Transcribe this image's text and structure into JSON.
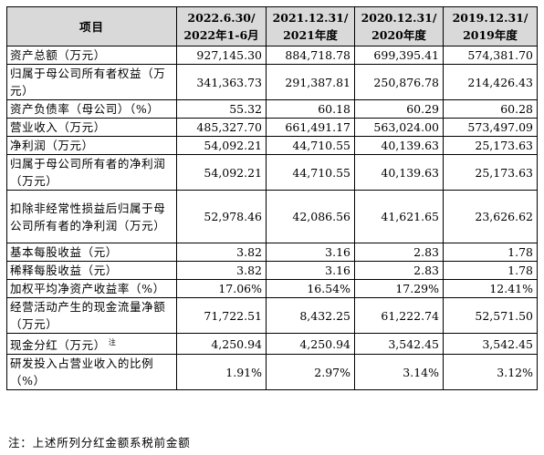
{
  "header": {
    "item": "项目",
    "periods": [
      {
        "line1": "2022.6.30/",
        "line2": "2022年1-6月"
      },
      {
        "line1": "2021.12.31/",
        "line2": "2021年度"
      },
      {
        "line1": "2020.12.31/",
        "line2": "2020年度"
      },
      {
        "line1": "2019.12.31/",
        "line2": "2019年度"
      }
    ]
  },
  "rows": [
    {
      "label": "资产总额（万元）",
      "values": [
        "927,145.30",
        "884,718.78",
        "699,395.41",
        "574,381.70"
      ]
    },
    {
      "label": "归属于母公司所有者权益（万元）",
      "values": [
        "341,363.73",
        "291,387.81",
        "250,876.78",
        "214,426.43"
      ]
    },
    {
      "label": "资产负债率（母公司）（%）",
      "values": [
        "55.32",
        "60.18",
        "60.29",
        "60.28"
      ]
    },
    {
      "label": "营业收入（万元）",
      "values": [
        "485,327.70",
        "661,491.17",
        "563,024.00",
        "573,497.09"
      ]
    },
    {
      "label": "净利润（万元）",
      "values": [
        "54,092.21",
        "44,710.55",
        "40,139.63",
        "25,173.63"
      ]
    },
    {
      "label": "归属于母公司所有者的净利润（万元）",
      "values": [
        "54,092.21",
        "44,710.55",
        "40,139.63",
        "25,173.63"
      ]
    },
    {
      "label": "扣除非经常性损益后归属于母公司所有者的净利润（万元）",
      "values": [
        "52,978.46",
        "42,086.56",
        "41,621.65",
        "23,626.62"
      ]
    },
    {
      "label": "基本每股收益（元）",
      "values": [
        "3.82",
        "3.16",
        "2.83",
        "1.78"
      ]
    },
    {
      "label": "稀释每股收益（元）",
      "values": [
        "3.82",
        "3.16",
        "2.83",
        "1.78"
      ]
    },
    {
      "label": "加权平均净资产收益率（%）",
      "values": [
        "17.06%",
        "16.54%",
        "17.29%",
        "12.41%"
      ]
    },
    {
      "label": "经营活动产生的现金流量净额（万元）",
      "values": [
        "71,722.51",
        "8,432.25",
        "61,222.74",
        "52,571.50"
      ]
    },
    {
      "label": "现金分红（万元）",
      "note_mark": "注",
      "values": [
        "4,250.94",
        "4,250.94",
        "3,542.45",
        "3,542.45"
      ]
    },
    {
      "label": "研发投入占营业收入的比例（%）",
      "values": [
        "1.91%",
        "2.97%",
        "3.14%",
        "3.12%"
      ]
    }
  ],
  "footnote": "注：上述所列分红金额系税前金额"
}
